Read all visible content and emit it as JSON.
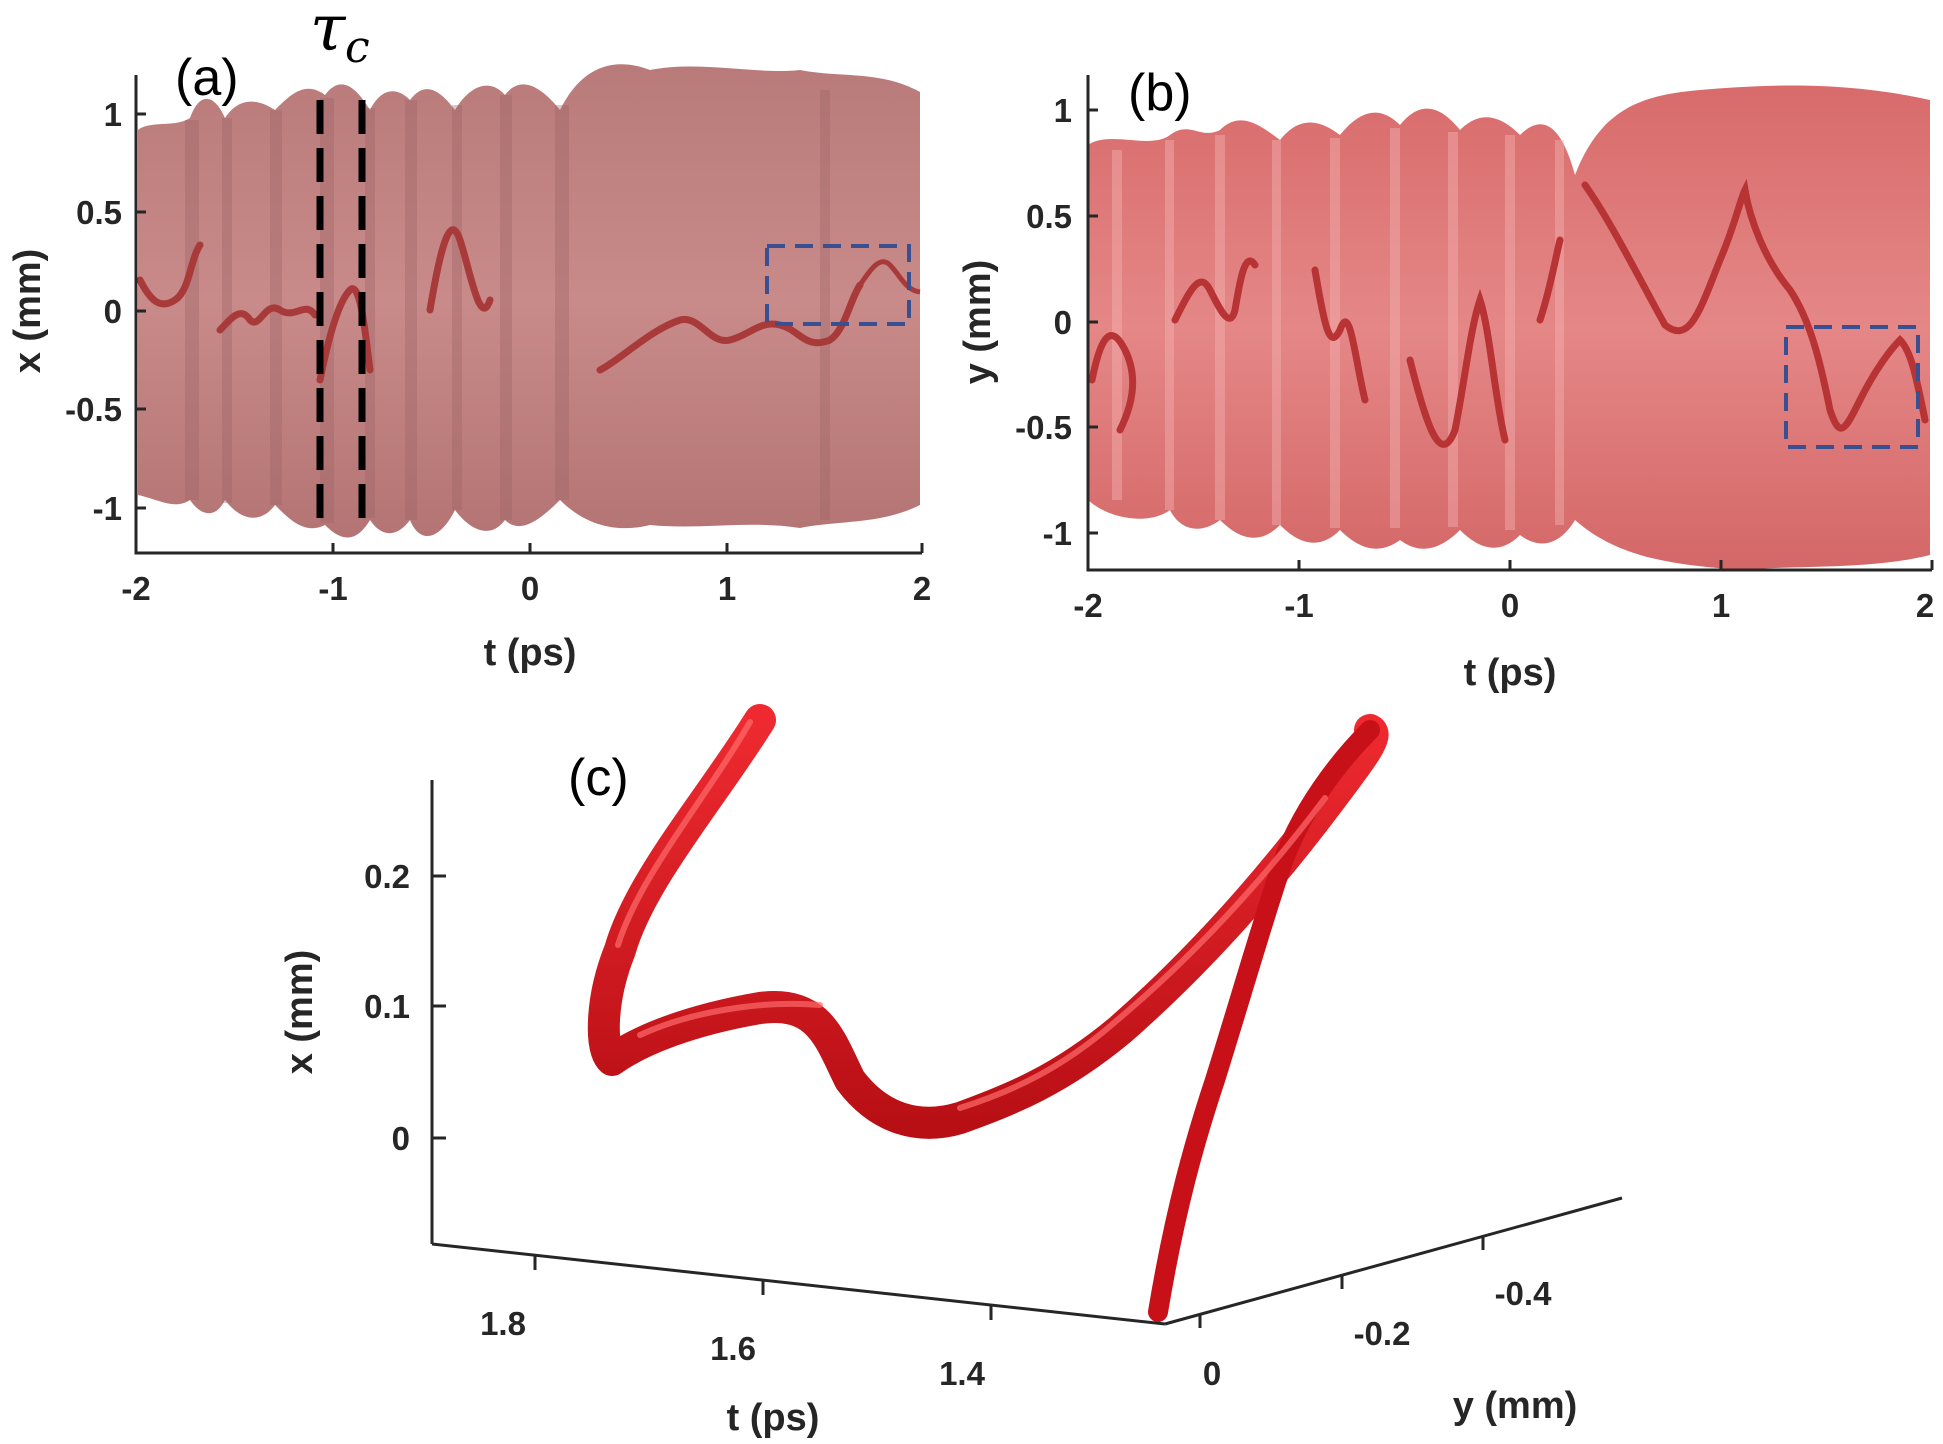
{
  "panel_a": {
    "label": "(a)",
    "xlabel": "t (ps)",
    "ylabel": "x (mm)",
    "xticks": [
      "-2",
      "-1",
      "0",
      "1",
      "2"
    ],
    "yticks": [
      "1",
      "0.5",
      "0",
      "-0.5",
      "-1"
    ],
    "annotation_tau": "τ",
    "annotation_tau_sub": "c"
  },
  "panel_b": {
    "label": "(b)",
    "xlabel": "t (ps)",
    "ylabel": "y (mm)",
    "xticks": [
      "-2",
      "-1",
      "0",
      "1",
      "2"
    ],
    "yticks": [
      "1",
      "0.5",
      "0",
      "-0.5",
      "-1"
    ]
  },
  "panel_c": {
    "label": "(c)",
    "zlabel": "x (mm)",
    "tlabel": "t (ps)",
    "ylabel": "y (mm)",
    "zticks": [
      "0.2",
      "0.1",
      "0"
    ],
    "tticks": [
      "1.8",
      "1.6",
      "1.4"
    ],
    "yticks": [
      "0",
      "-0.2",
      "-0.4"
    ]
  },
  "colors": {
    "surface": "#c98888",
    "surface_b": "#e07b7b",
    "vortex_line": "#a93a3a",
    "knot": "#d8141b",
    "dashed_box": "#3a4f8f",
    "axis": "#262626"
  }
}
